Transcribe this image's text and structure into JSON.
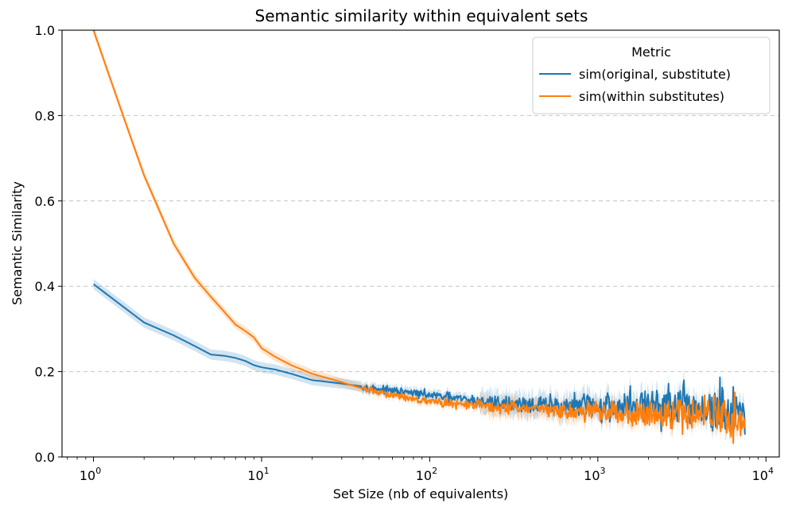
{
  "chart_data": {
    "type": "line",
    "title": "Semantic similarity within equivalent sets",
    "xlabel": "Set Size (nb of equivalents)",
    "ylabel": "Semantic Similarity",
    "xscale": "log",
    "xlim": [
      0.65,
      12000
    ],
    "ylim": [
      0.0,
      1.0
    ],
    "yticks": [
      "0.0",
      "0.2",
      "0.4",
      "0.6",
      "0.8",
      "1.0"
    ],
    "xticks": [
      {
        "base": "10",
        "exp": "0"
      },
      {
        "base": "10",
        "exp": "1"
      },
      {
        "base": "10",
        "exp": "2"
      },
      {
        "base": "10",
        "exp": "3"
      },
      {
        "base": "10",
        "exp": "4"
      }
    ],
    "grid": "horizontal dashed",
    "legend": {
      "title": "Metric",
      "placement": "top-right",
      "entries": [
        "sim(original, substitute)",
        "sim(within substitutes)"
      ]
    },
    "colors": {
      "blue": "#1f77b4",
      "orange": "#ff7f0e",
      "grid": "#b0b0b0"
    },
    "series": [
      {
        "name": "sim(original, substitute)",
        "color": "#1f77b4",
        "x": [
          1,
          2,
          3,
          4,
          5,
          6,
          7,
          8,
          9,
          10,
          12,
          15,
          20,
          30,
          40,
          60,
          100,
          200,
          500,
          1000,
          2000,
          5000,
          7500
        ],
        "y": [
          0.405,
          0.315,
          0.285,
          0.26,
          0.24,
          0.237,
          0.232,
          0.225,
          0.215,
          0.21,
          0.205,
          0.195,
          0.18,
          0.172,
          0.165,
          0.155,
          0.145,
          0.13,
          0.12,
          0.12,
          0.12,
          0.11,
          0.085
        ],
        "noise_from_x": 40,
        "noise_amplitude": [
          0.0,
          0.005,
          0.05
        ],
        "band": 0.012
      },
      {
        "name": "sim(within substitutes)",
        "color": "#ff7f0e",
        "x": [
          1,
          1.5,
          2,
          3,
          4,
          5,
          6,
          7,
          8,
          9,
          10,
          12,
          15,
          20,
          30,
          40,
          60,
          100,
          200,
          500,
          1000,
          2000,
          5000,
          7500
        ],
        "y": [
          1.0,
          0.8,
          0.66,
          0.5,
          0.42,
          0.375,
          0.34,
          0.31,
          0.295,
          0.28,
          0.255,
          0.235,
          0.215,
          0.195,
          0.175,
          0.16,
          0.145,
          0.13,
          0.12,
          0.11,
          0.105,
          0.1,
          0.1,
          0.085
        ],
        "noise_from_x": 40,
        "noise_amplitude": [
          0.0,
          0.005,
          0.035
        ],
        "band": 0.01
      }
    ]
  }
}
